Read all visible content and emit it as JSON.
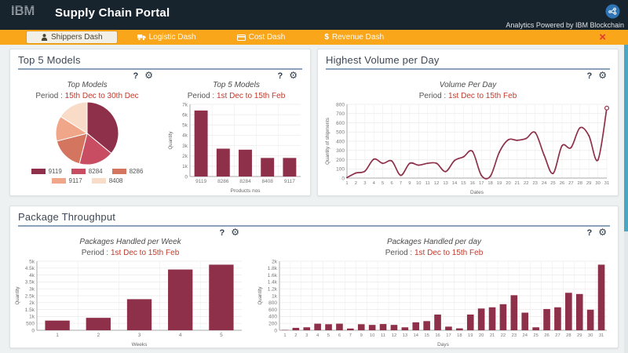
{
  "header": {
    "brand": "IBM",
    "title": "Supply Chain Portal",
    "tagline": "Analytics Powered by IBM Blockchain"
  },
  "nav": {
    "close_label": "×",
    "tabs": [
      {
        "label": "Shippers Dash",
        "icon": "user-icon",
        "active": true
      },
      {
        "label": "Logistic Dash",
        "icon": "truck-icon",
        "active": false
      },
      {
        "label": "Cost Dash",
        "icon": "card-icon",
        "active": false
      },
      {
        "label": "Revenue Dash",
        "icon": "dollar-icon",
        "active": false
      }
    ]
  },
  "tools": {
    "help": "?",
    "settings": "⚙"
  },
  "cards": [
    {
      "title": "Top 5 Models"
    },
    {
      "title": "Highest Volume per Day"
    },
    {
      "title": "Package Throughput"
    }
  ],
  "theme": {
    "header_bg": "#17242e",
    "nav_bg": "#f9a61b",
    "maroon": "#8e3049",
    "period_red": "#c0392b",
    "underline": "#89a3bc",
    "page_bg": "#eef1f2",
    "close_red": "#e5392e",
    "active_tab_bg": "#f2efe6",
    "scroll": "#4ba6c3",
    "chain_blue": "#2f74b5"
  },
  "chart_data": [
    {
      "type": "pie",
      "title": "Top Models",
      "period_label": "Period : ",
      "period": "15th Dec to 30th Dec",
      "labels": [
        "9119",
        "8284",
        "8286",
        "9117",
        "8408"
      ],
      "values": [
        36,
        18,
        17,
        13,
        16
      ],
      "colors": [
        "#8e3049",
        "#c84d63",
        "#d3755f",
        "#efa689",
        "#f8dcc8"
      ],
      "legend_position": "bottom"
    },
    {
      "type": "bar",
      "title": "Top 5 Models",
      "period_label": "Period : ",
      "period": "1st Dec to 15th Feb",
      "categories": [
        "9119",
        "8286",
        "8284",
        "8408",
        "9117"
      ],
      "values": [
        6400,
        2700,
        2600,
        1800,
        1800
      ],
      "xlabel": "Products nos",
      "ylabel": "Quantity",
      "ylim": [
        0,
        7000
      ],
      "ytick": 1000,
      "grid": true
    },
    {
      "type": "line",
      "title": "Volume Per Day",
      "period_label": "Period : ",
      "period": "1st Dec to 15th Feb",
      "categories": [
        "1",
        "2",
        "3",
        "4",
        "5",
        "6",
        "7",
        "9",
        "10",
        "11",
        "12",
        "13",
        "14",
        "15",
        "16",
        "17",
        "18",
        "19",
        "20",
        "21",
        "22",
        "23",
        "24",
        "25",
        "26",
        "27",
        "28",
        "29",
        "30",
        "31"
      ],
      "values": [
        5,
        55,
        75,
        205,
        160,
        185,
        30,
        160,
        140,
        160,
        160,
        70,
        190,
        230,
        290,
        30,
        20,
        280,
        415,
        410,
        430,
        495,
        250,
        50,
        350,
        330,
        545,
        460,
        195,
        760
      ],
      "xlabel": "Dates",
      "ylabel": "Quantity of shipments",
      "ylim": [
        0,
        800
      ],
      "ytick": 100,
      "grid": true,
      "end_marker": true
    },
    {
      "type": "bar",
      "title": "Packages Handled per Week",
      "period_label": "Period : ",
      "period": "1st Dec to 15th Feb",
      "categories": [
        "1",
        "2",
        "3",
        "4",
        "5"
      ],
      "values": [
        700,
        900,
        2250,
        4400,
        4750
      ],
      "xlabel": "Weeks",
      "ylabel": "Quantity",
      "ylim": [
        0,
        5000
      ],
      "ytick": 500,
      "grid": true
    },
    {
      "type": "bar",
      "title": "Packages Handled per day",
      "period_label": "Period : ",
      "period": "1st Dec to 15th Feb",
      "categories": [
        "1",
        "2",
        "3",
        "4",
        "5",
        "6",
        "7",
        "9",
        "10",
        "11",
        "12",
        "13",
        "14",
        "15",
        "16",
        "17",
        "18",
        "19",
        "20",
        "21",
        "22",
        "23",
        "24",
        "25",
        "26",
        "27",
        "28",
        "29",
        "30",
        "31"
      ],
      "values": [
        10,
        70,
        85,
        190,
        175,
        190,
        50,
        175,
        155,
        180,
        155,
        85,
        230,
        265,
        455,
        105,
        55,
        455,
        630,
        665,
        755,
        1015,
        510,
        85,
        615,
        665,
        1085,
        1050,
        595,
        1900
      ],
      "xlabel": "Days",
      "ylabel": "Quantity",
      "ylim": [
        0,
        2000
      ],
      "ytick": 200,
      "grid": true
    }
  ]
}
